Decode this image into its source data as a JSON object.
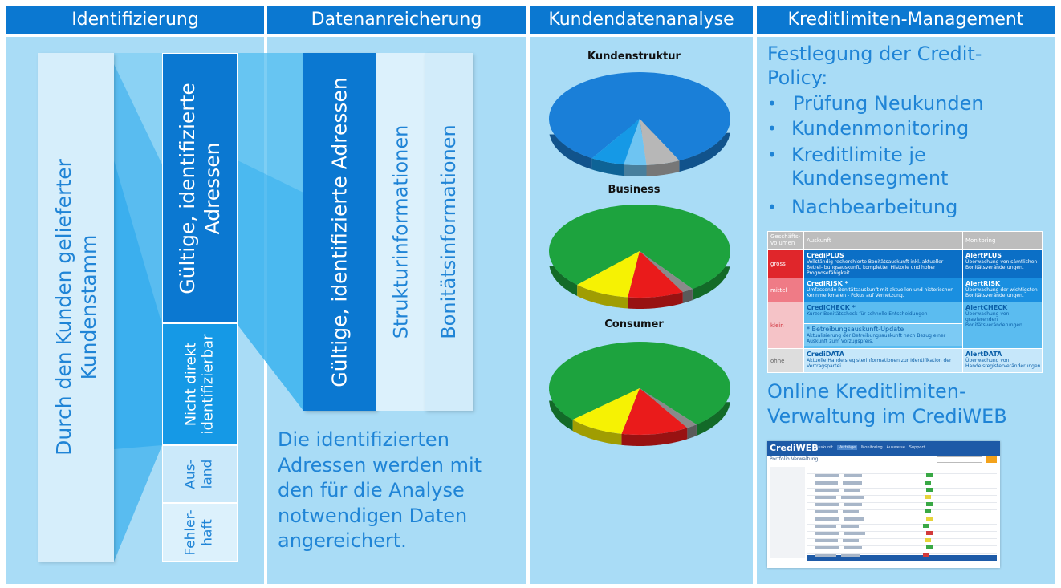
{
  "headers": [
    "Identifizierung",
    "Datenanreicherung",
    "Kundendatenanalyse",
    "Kreditlimiten-Management"
  ],
  "ident": {
    "source_line1": "Durch den Kunden gelieferter",
    "source_line2": "Kundenstamm",
    "valid_line1": "Gültige, identifizierte",
    "valid_line2": "Adressen",
    "not_direct_line1": "Nicht direkt",
    "not_direct_line2": "identifizierbar",
    "abroad_line1": "Aus-",
    "abroad_line2": "land",
    "faulty_line1": "Fehler-",
    "faulty_line2": "haft"
  },
  "enrich": {
    "valid": "Gültige, identifizierte Adressen",
    "structure": "Strukturinformationen",
    "credit": "Bonitätsinformationen",
    "caption": [
      "Die identifizierten",
      "Adressen werden mit",
      "den für die Analyse",
      "notwendigen Daten",
      "angereichert."
    ]
  },
  "chart_data": [
    {
      "type": "pie",
      "title": "Kundenstruktur",
      "values": [
        84,
        6,
        4,
        6
      ],
      "colors": [
        "#1a7fd8",
        "#b7b7b7",
        "#6ec4f2",
        "#1599e6"
      ]
    },
    {
      "type": "pie",
      "title": "Business",
      "values": [
        78,
        2,
        10,
        10
      ],
      "colors": [
        "#1da33e",
        "#8a8a8a",
        "#ea1b1b",
        "#f6f203"
      ]
    },
    {
      "type": "pie",
      "title": "Consumer",
      "values": [
        76,
        2,
        12,
        10
      ],
      "colors": [
        "#1da33e",
        "#8a8a8a",
        "#ea1b1b",
        "#f6f203"
      ]
    }
  ],
  "credit": {
    "heading1": "Festlegung der Credit-",
    "heading2": "Policy:",
    "bullets": [
      [
        "Prüfung Neukunden"
      ],
      [
        "Kundenmonitoring"
      ],
      [
        "Kreditlimite je",
        "Kundensegment"
      ],
      [
        "Nachbearbeitung"
      ]
    ],
    "online1": "Online Kreditlimiten-",
    "online2": "Verwaltung im CrediWEB"
  },
  "table": {
    "col1a": "Geschäfts-",
    "col1b": "volumen",
    "col2": "Auskunft",
    "col3": "Monitoring",
    "rows": [
      {
        "seg": "gross",
        "name": "CrediPLUS",
        "desc": "Vollständig recherchierte Bonitätsauskunft inkl. aktueller Betrei- bungsauskunft, kompletter Historie und hoher Prognosefähigkeit.",
        "mon": "AlertPLUS",
        "mdesc": "Überwachung von sämtlichen Bonitätsveränderungen."
      },
      {
        "seg": "mittel",
        "name": "CrediRISK *",
        "desc": "Umfassende Bonitätsauskunft mit aktuellen und historischen Kennmerkmalen - Fokus auf Vernetzung.",
        "mon": "AlertRISK",
        "mdesc": "Überwachung der wichtigsten Bonitätsveränderungen."
      },
      {
        "seg": "klein",
        "name": "CrediCHECK *",
        "desc": "Kurzer Bonitätscheck für schnelle Entscheidungen",
        "name2": "* Betreibungsauskunft-Update",
        "desc2": "Aktualisierung der Betreibungsauskunft nach Bezug einer Auskunft zum Vorzugspreis.",
        "mon": "AlertCHECK",
        "mdesc": "Überwachung von gravierenden Bonitätsveränderungen."
      },
      {
        "seg": "ohne",
        "name": "CrediDATA",
        "desc": "Aktuelle Handelsregisterinformationen zur Identifikation der Vertragspartei.",
        "mon": "AlertDATA",
        "mdesc": "Überwachung von Handelsregisterveränderungen."
      }
    ]
  },
  "screenshot": {
    "logo": "CrediWEB",
    "title": "Portfolio Verwaltung",
    "nav": [
      "Auskunft",
      "Verträge",
      "Monitoring",
      "Ausweise",
      "Support"
    ]
  }
}
